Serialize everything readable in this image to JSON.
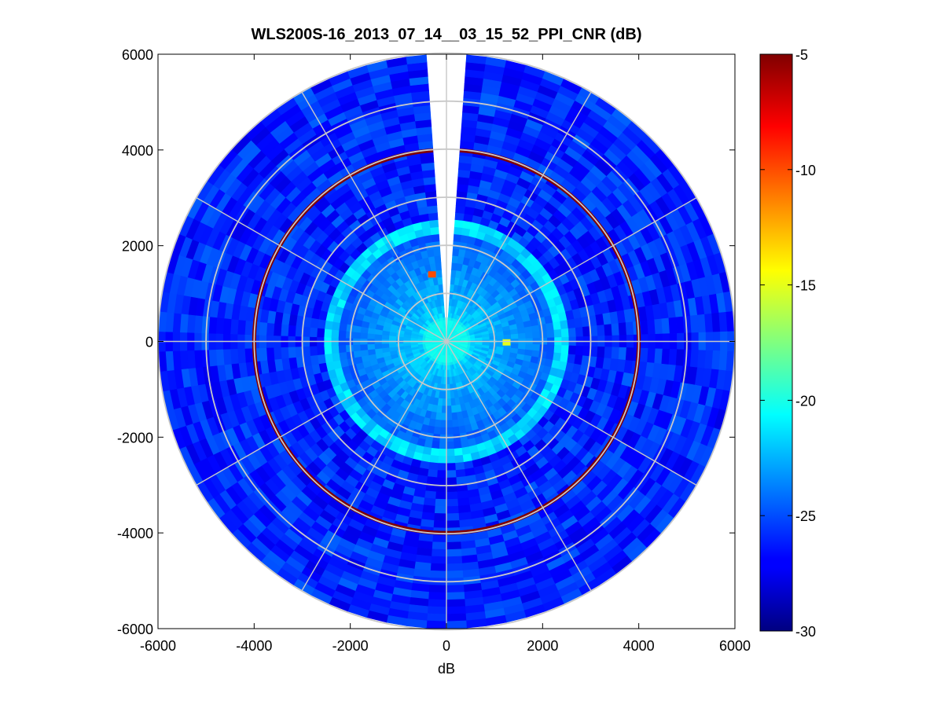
{
  "chart_data": {
    "type": "heatmap",
    "subtype": "polar-ppi",
    "title": "WLS200S-16_2013_07_14__03_15_52_PPI_CNR (dB)",
    "xlabel": "dB",
    "ylabel": "",
    "xlim": [
      -6000,
      6000
    ],
    "ylim": [
      -6000,
      6000
    ],
    "x_ticks": [
      "-6000",
      "-4000",
      "-2000",
      "0",
      "2000",
      "4000",
      "6000"
    ],
    "y_ticks": [
      "6000",
      "4000",
      "2000",
      "0",
      "-2000",
      "-4000",
      "-6000"
    ],
    "colorbar": {
      "colormap": "jet",
      "range": [
        -30,
        -5
      ],
      "ticks": [
        "-5",
        "-10",
        "-15",
        "-20",
        "-25",
        "-30"
      ]
    },
    "max_range": 6000,
    "range_rings": [
      1000,
      2000,
      3000,
      4000,
      5000,
      6000
    ],
    "spoke_angles_deg": [
      0,
      30,
      60,
      90,
      120,
      150,
      180,
      210,
      240,
      270,
      300,
      330
    ],
    "missing_sector_deg": [
      -4,
      4
    ],
    "grid": true,
    "features": [
      {
        "description": "strong return ring",
        "range": 4000,
        "value_db": -5
      },
      {
        "description": "hard target",
        "x": -300,
        "y": 1400,
        "value_db": -10
      },
      {
        "description": "hard target",
        "x": 1250,
        "y": -20,
        "value_db": -15
      },
      {
        "description": "elevated near-field",
        "range_max": 500,
        "value_db": -20
      }
    ],
    "colors": {
      "background": "#ffffff",
      "grid": "#c8c8c8"
    }
  }
}
